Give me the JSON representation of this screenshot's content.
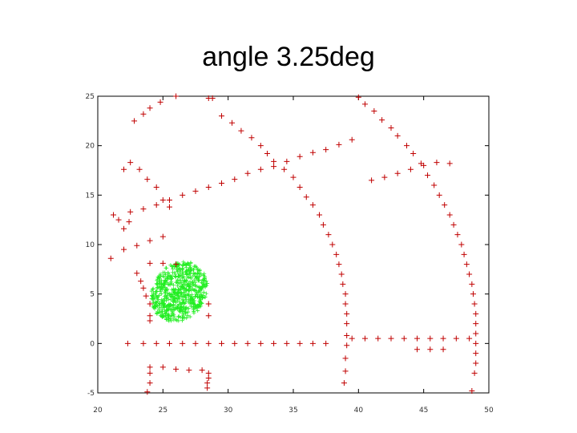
{
  "title": "angle 3.25deg",
  "chart_data": {
    "type": "scatter",
    "title": "angle 3.25deg",
    "xlabel": "",
    "ylabel": "",
    "xlim": [
      20,
      50
    ],
    "ylim": [
      -5,
      25
    ],
    "xticks": [
      20,
      25,
      30,
      35,
      40,
      45,
      50
    ],
    "yticks": [
      -5,
      0,
      5,
      10,
      15,
      20,
      25
    ],
    "grid": false,
    "series": [
      {
        "marker": "cross",
        "color": "#c00000",
        "points": [
          [
            21.0,
            8.6
          ],
          [
            22.0,
            9.5
          ],
          [
            23.0,
            9.9
          ],
          [
            24.0,
            10.4
          ],
          [
            25.0,
            10.8
          ],
          [
            21.2,
            13.0
          ],
          [
            21.6,
            12.5
          ],
          [
            22.0,
            11.6
          ],
          [
            22.4,
            12.3
          ],
          [
            22.5,
            13.3
          ],
          [
            23.5,
            13.6
          ],
          [
            24.5,
            14.0
          ],
          [
            25.5,
            14.5
          ],
          [
            26.5,
            15.0
          ],
          [
            27.5,
            15.4
          ],
          [
            28.5,
            15.8
          ],
          [
            29.5,
            16.2
          ],
          [
            30.5,
            16.6
          ],
          [
            31.5,
            17.2
          ],
          [
            32.5,
            17.6
          ],
          [
            33.5,
            17.9
          ],
          [
            34.5,
            18.4
          ],
          [
            35.5,
            18.9
          ],
          [
            36.5,
            19.3
          ],
          [
            37.5,
            19.6
          ],
          [
            38.5,
            20.1
          ],
          [
            39.5,
            20.6
          ],
          [
            22.5,
            18.3
          ],
          [
            23.2,
            17.6
          ],
          [
            23.8,
            16.6
          ],
          [
            24.5,
            15.8
          ],
          [
            25.0,
            14.5
          ],
          [
            25.5,
            13.8
          ],
          [
            22.0,
            17.6
          ],
          [
            22.8,
            22.5
          ],
          [
            23.5,
            23.2
          ],
          [
            24.0,
            23.8
          ],
          [
            24.8,
            24.4
          ],
          [
            26.0,
            25.0
          ],
          [
            28.5,
            24.8
          ],
          [
            28.8,
            24.8
          ],
          [
            29.5,
            23.0
          ],
          [
            30.3,
            22.3
          ],
          [
            31.0,
            21.5
          ],
          [
            31.8,
            20.8
          ],
          [
            32.5,
            20.0
          ],
          [
            33.0,
            19.2
          ],
          [
            33.5,
            18.4
          ],
          [
            34.3,
            17.6
          ],
          [
            35.0,
            16.8
          ],
          [
            35.5,
            15.8
          ],
          [
            36.0,
            14.8
          ],
          [
            36.5,
            14.0
          ],
          [
            37.0,
            13.0
          ],
          [
            37.3,
            12.0
          ],
          [
            37.7,
            11.0
          ],
          [
            38.0,
            10.0
          ],
          [
            38.3,
            9.0
          ],
          [
            38.5,
            8.0
          ],
          [
            38.7,
            7.0
          ],
          [
            38.8,
            6.0
          ],
          [
            39.0,
            5.0
          ],
          [
            39.0,
            4.0
          ],
          [
            39.1,
            3.0
          ],
          [
            39.1,
            2.0
          ],
          [
            39.1,
            0.8
          ],
          [
            39.1,
            -0.2
          ],
          [
            39.0,
            -1.5
          ],
          [
            39.0,
            -2.8
          ],
          [
            38.9,
            -4.0
          ],
          [
            40.0,
            24.9
          ],
          [
            40.5,
            24.2
          ],
          [
            41.2,
            23.5
          ],
          [
            41.8,
            22.6
          ],
          [
            42.5,
            21.8
          ],
          [
            43.0,
            21.0
          ],
          [
            43.7,
            20.0
          ],
          [
            44.2,
            19.2
          ],
          [
            44.8,
            18.2
          ],
          [
            45.3,
            17.0
          ],
          [
            45.8,
            16.0
          ],
          [
            46.2,
            15.0
          ],
          [
            46.6,
            14.0
          ],
          [
            47.0,
            13.0
          ],
          [
            47.3,
            12.0
          ],
          [
            47.6,
            11.0
          ],
          [
            47.9,
            10.0
          ],
          [
            48.1,
            9.0
          ],
          [
            48.3,
            8.0
          ],
          [
            48.5,
            7.0
          ],
          [
            48.7,
            6.0
          ],
          [
            48.8,
            5.0
          ],
          [
            48.9,
            4.0
          ],
          [
            49.0,
            3.0
          ],
          [
            49.0,
            2.0
          ],
          [
            49.0,
            1.0
          ],
          [
            49.0,
            0.0
          ],
          [
            49.0,
            -1.0
          ],
          [
            49.0,
            -2.0
          ],
          [
            48.9,
            -3.0
          ],
          [
            48.7,
            -4.8
          ],
          [
            41.0,
            16.5
          ],
          [
            42.0,
            16.8
          ],
          [
            43.0,
            17.2
          ],
          [
            44.0,
            17.6
          ],
          [
            45.0,
            18.0
          ],
          [
            46.0,
            18.3
          ],
          [
            47.0,
            18.2
          ],
          [
            22.3,
            0.0
          ],
          [
            23.5,
            0.0
          ],
          [
            24.5,
            0.0
          ],
          [
            25.5,
            0.0
          ],
          [
            26.5,
            0.0
          ],
          [
            27.5,
            0.0
          ],
          [
            28.5,
            0.0
          ],
          [
            29.5,
            0.0
          ],
          [
            30.5,
            0.0
          ],
          [
            31.5,
            0.0
          ],
          [
            32.5,
            0.0
          ],
          [
            33.5,
            0.0
          ],
          [
            34.5,
            0.0
          ],
          [
            35.5,
            0.0
          ],
          [
            36.5,
            0.0
          ],
          [
            37.5,
            0.0
          ],
          [
            39.5,
            0.5
          ],
          [
            40.5,
            0.5
          ],
          [
            41.5,
            0.5
          ],
          [
            42.5,
            0.5
          ],
          [
            43.5,
            0.5
          ],
          [
            44.5,
            0.5
          ],
          [
            45.5,
            0.5
          ],
          [
            46.5,
            0.5
          ],
          [
            47.5,
            0.5
          ],
          [
            48.5,
            0.5
          ],
          [
            44.5,
            -0.6
          ],
          [
            45.5,
            -0.6
          ],
          [
            46.5,
            -0.6
          ],
          [
            23.0,
            7.1
          ],
          [
            23.3,
            6.3
          ],
          [
            23.5,
            5.6
          ],
          [
            23.7,
            4.8
          ],
          [
            24.0,
            4.0
          ],
          [
            24.0,
            2.8
          ],
          [
            24.0,
            2.3
          ],
          [
            28.5,
            2.8
          ],
          [
            28.5,
            4.0
          ],
          [
            24.0,
            -2.4
          ],
          [
            24.0,
            -3.0
          ],
          [
            24.0,
            -4.0
          ],
          [
            23.8,
            -4.9
          ],
          [
            25.0,
            -2.4
          ],
          [
            26.0,
            -2.6
          ],
          [
            27.0,
            -2.7
          ],
          [
            28.0,
            -2.7
          ],
          [
            28.5,
            -3.0
          ],
          [
            28.5,
            -3.5
          ],
          [
            28.4,
            -4.0
          ],
          [
            28.4,
            -4.5
          ],
          [
            24.0,
            8.1
          ],
          [
            25.0,
            8.1
          ],
          [
            26.0,
            8.0
          ]
        ]
      },
      {
        "marker": "cross",
        "color": "#22ee22",
        "cluster": {
          "center": [
            26.2,
            5.2
          ],
          "extent_x": [
            24.0,
            28.5
          ],
          "extent_y": [
            2.2,
            8.3
          ],
          "count": 650
        }
      }
    ]
  }
}
